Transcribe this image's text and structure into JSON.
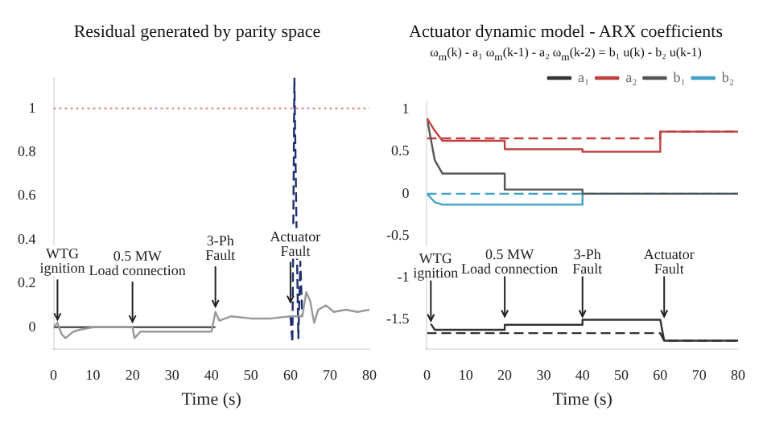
{
  "chart_data": [
    {
      "type": "line",
      "title": "Residual generated by parity space",
      "xlabel": "Time (s)",
      "xlim": [
        0,
        80
      ],
      "ylim": [
        -0.1,
        1.14
      ],
      "xticks": [
        0,
        10,
        20,
        30,
        40,
        50,
        60,
        70,
        80
      ],
      "yticks": [
        0,
        0.2,
        0.4,
        0.6,
        0.8,
        1
      ],
      "marker": "none",
      "legend": false,
      "series": [
        {
          "color": "#999999",
          "line_style": "solid",
          "x": [
            0,
            1,
            2,
            3,
            5,
            7,
            10,
            20,
            20.5,
            22,
            25,
            30,
            40,
            41,
            42,
            45,
            50,
            55,
            60,
            63,
            64,
            65,
            66,
            67,
            69,
            71,
            74,
            77,
            80
          ],
          "values": [
            0,
            0.02,
            -0.03,
            -0.05,
            -0.02,
            -0.01,
            0,
            0,
            -0.05,
            -0.02,
            -0.02,
            -0.02,
            -0.02,
            0.07,
            0.03,
            0.05,
            0.04,
            0.04,
            0.05,
            0.05,
            0.16,
            0.12,
            0.02,
            0.08,
            0.1,
            0.07,
            0.08,
            0.07,
            0.08
          ]
        },
        {
          "color": "#555555",
          "line_style": "solid",
          "x": [
            0,
            41
          ],
          "values": [
            0,
            0
          ]
        },
        {
          "color": "#1f2f6f",
          "line_style": "dashed",
          "x": [
            60,
            60.5,
            61,
            61.5,
            62,
            62.5,
            63
          ],
          "values": [
            0.05,
            -0.07,
            1.14,
            0.5,
            -0.05,
            0.3,
            0.05
          ]
        }
      ],
      "ref_lines": [
        {
          "axis": "y",
          "value": 1,
          "color": "#e08080",
          "line_style": "dotted"
        }
      ],
      "annotations": [
        {
          "text": "WTG\nignition",
          "x": 1,
          "y": 0.02
        },
        {
          "text": "0.5 MW\nLoad connection",
          "x": 20,
          "y": 0.01
        },
        {
          "text": "3-Ph\nFault",
          "x": 41,
          "y": 0.08
        },
        {
          "text": "Actuator\nFault",
          "x": 60,
          "y": 0.1
        }
      ]
    },
    {
      "type": "line",
      "title": "Actuator dynamic model - ARX coefficients",
      "subtitle": "ω$_{m}$(k) - a₁ ω$_{m}$(k-1) - a₂ ω$_{m}$(k-2) = b₁ u(k) - b₂ u(k-1)",
      "xlabel": "Time (s)",
      "xlim": [
        0,
        80
      ],
      "ylim": [
        -1.85,
        1.1
      ],
      "xticks": [
        0,
        10,
        20,
        30,
        40,
        50,
        60,
        70,
        80
      ],
      "yticks": [
        -1.5,
        -1,
        -0.5,
        0,
        0.5,
        1
      ],
      "marker": "none",
      "legend": "top right",
      "series": [
        {
          "name": "a₁",
          "color": "#333333",
          "line_style": "solid",
          "x": [
            1,
            2,
            20,
            20,
            40,
            40,
            60,
            61,
            80
          ],
          "values": [
            -1.55,
            -1.62,
            -1.62,
            -1.56,
            -1.56,
            -1.5,
            -1.5,
            -1.75,
            -1.75
          ]
        },
        {
          "name": "a₂",
          "color": "#c04040",
          "line_style": "solid",
          "x": [
            0,
            2,
            4,
            20,
            20,
            40,
            40,
            60,
            60,
            80
          ],
          "values": [
            0.9,
            0.75,
            0.63,
            0.63,
            0.53,
            0.53,
            0.5,
            0.5,
            0.74,
            0.74
          ]
        },
        {
          "name": "b₁",
          "color": "#555555",
          "line_style": "solid",
          "x": [
            0,
            2,
            4,
            20,
            20,
            40,
            40,
            80
          ],
          "values": [
            0.9,
            0.4,
            0.24,
            0.24,
            0.05,
            0.05,
            0,
            0
          ]
        },
        {
          "name": "b₂",
          "color": "#40a0c8",
          "line_style": "solid",
          "x": [
            0,
            2,
            4,
            40,
            40,
            80
          ],
          "values": [
            0,
            -0.1,
            -0.13,
            -0.13,
            0,
            0
          ]
        },
        {
          "color": "#333333",
          "line_style": "dashed",
          "x": [
            0,
            60,
            61,
            80
          ],
          "values": [
            -1.66,
            -1.66,
            -1.75,
            -1.75
          ]
        },
        {
          "color": "#c04040",
          "line_style": "dashed",
          "x": [
            0,
            60,
            60,
            80
          ],
          "values": [
            0.66,
            0.66,
            0.74,
            0.74
          ]
        },
        {
          "color": "#40a0c8",
          "line_style": "dashed",
          "x": [
            0,
            80
          ],
          "values": [
            0,
            0
          ]
        }
      ],
      "annotations": [
        {
          "text": "WTG\nignition",
          "x": 1,
          "y": -1.55
        },
        {
          "text": "0.5 MW\nLoad connection",
          "x": 20,
          "y": -1.5
        },
        {
          "text": "3-Ph\nFault",
          "x": 40,
          "y": -1.5
        },
        {
          "text": "Actuator\nFault",
          "x": 61,
          "y": -1.5
        }
      ]
    }
  ]
}
